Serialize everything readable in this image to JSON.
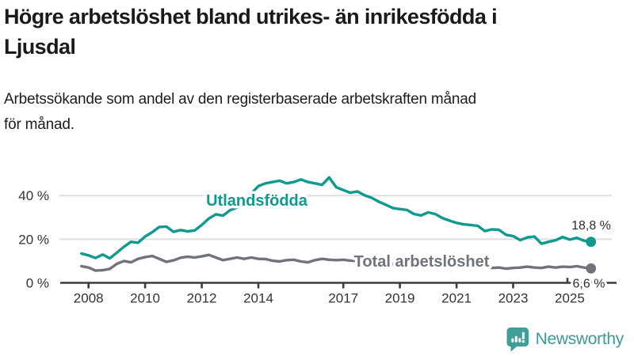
{
  "header": {
    "title": "Högre arbetslöshet bland utrikes- än inrikesfödda i\nLjusdal",
    "subtitle": "Arbetssökande som andel av den registerbaserade arbetskraften månad\nför månad."
  },
  "chart_data": {
    "type": "line",
    "title": "Högre arbetslöshet bland utrikes- än inrikesfödda i Ljusdal",
    "subtitle": "Arbetssökande som andel av den registerbaserade arbetskraften månad för månad.",
    "x_unit": "decimal year (monthly registry data, shown late 2007 – autumn 2025)",
    "ylabel": "",
    "xlabel": "",
    "grid": "horizontal-only",
    "legend_position": "inline-labels",
    "xlim": [
      2007.6,
      2026.3
    ],
    "ylim": [
      0,
      52
    ],
    "gridlines": [
      20,
      40
    ],
    "x": [
      2007.75,
      2008,
      2008.25,
      2008.5,
      2008.75,
      2009,
      2009.25,
      2009.5,
      2009.75,
      2010,
      2010.25,
      2010.5,
      2010.75,
      2011,
      2011.25,
      2011.5,
      2011.75,
      2012,
      2012.25,
      2012.5,
      2012.75,
      2013,
      2013.25,
      2013.5,
      2013.75,
      2014,
      2014.25,
      2014.5,
      2014.75,
      2015,
      2015.25,
      2015.5,
      2015.75,
      2016,
      2016.25,
      2016.5,
      2016.75,
      2017,
      2017.25,
      2017.5,
      2017.75,
      2018,
      2018.25,
      2018.5,
      2018.75,
      2019,
      2019.25,
      2019.5,
      2019.75,
      2020,
      2020.25,
      2020.5,
      2020.75,
      2021,
      2021.25,
      2021.5,
      2021.75,
      2022,
      2022.25,
      2022.5,
      2022.75,
      2023,
      2023.25,
      2023.5,
      2023.75,
      2024,
      2024.25,
      2024.5,
      2024.75,
      2025,
      2025.25,
      2025.5,
      2025.75
    ],
    "series": [
      {
        "name": "Utlandsfödda",
        "color": "#0e9a8e",
        "end_label": "18,8 %",
        "end_value": 18.8,
        "values": [
          13.4,
          12.6,
          11.4,
          13.0,
          11.2,
          13.8,
          16.5,
          18.8,
          18.4,
          21.2,
          23.2,
          25.6,
          25.8,
          23.4,
          24.2,
          23.6,
          24.0,
          26.5,
          29.5,
          31.4,
          30.8,
          33.3,
          34.5,
          37.0,
          41.0,
          44.3,
          45.6,
          46.2,
          46.8,
          45.6,
          46.2,
          47.4,
          46.2,
          45.6,
          44.9,
          48.3,
          43.8,
          42.5,
          41.3,
          41.9,
          40.1,
          39.0,
          37.2,
          35.8,
          34.3,
          33.8,
          33.4,
          31.5,
          30.9,
          32.3,
          31.5,
          29.7,
          28.5,
          27.5,
          26.8,
          26.5,
          26.1,
          23.7,
          24.5,
          24.3,
          22.0,
          21.4,
          19.6,
          20.8,
          21.2,
          17.9,
          18.8,
          19.5,
          21.0,
          19.8,
          20.6,
          19.3,
          18.8
        ]
      },
      {
        "name": "Total arbetslöshet",
        "color": "#72727a",
        "end_label": "6,6 %",
        "end_value": 6.6,
        "values": [
          7.6,
          7.0,
          5.6,
          5.8,
          6.4,
          8.7,
          10.0,
          9.4,
          11.0,
          11.8,
          12.3,
          11.0,
          9.6,
          10.3,
          11.5,
          12.0,
          11.6,
          12.1,
          12.8,
          11.6,
          10.4,
          11.0,
          11.6,
          11.0,
          11.6,
          11.0,
          10.9,
          10.1,
          9.8,
          10.4,
          10.6,
          9.8,
          9.4,
          10.4,
          11.0,
          10.6,
          10.4,
          10.6,
          10.2,
          10.0,
          9.6,
          9.2,
          9.0,
          8.8,
          8.6,
          8.5,
          8.4,
          8.3,
          8.4,
          8.6,
          9.4,
          9.6,
          9.2,
          8.8,
          8.5,
          8.1,
          7.7,
          7.3,
          6.8,
          7.0,
          6.5,
          6.8,
          7.0,
          7.4,
          7.0,
          6.8,
          7.4,
          7.0,
          7.4,
          7.2,
          7.6,
          7.0,
          6.6
        ]
      }
    ],
    "x_ticks": [
      {
        "year": 2008,
        "label": "2008",
        "tick": true
      },
      {
        "year": 2010,
        "label": "2010",
        "tick": true
      },
      {
        "year": 2012,
        "label": "2012",
        "tick": true
      },
      {
        "year": 2014,
        "label": "2014",
        "tick": true
      },
      {
        "year": 2017,
        "label": "2017",
        "tick": true
      },
      {
        "year": 2019,
        "label": "2019",
        "tick": true
      },
      {
        "year": 2021,
        "label": "2021",
        "tick": true
      },
      {
        "year": 2023,
        "label": "2023",
        "tick": true
      },
      {
        "year": 2025,
        "label": "2025",
        "tick": false
      }
    ],
    "y_ticks": [
      {
        "value": 0,
        "label": "0 %"
      },
      {
        "value": 20,
        "label": "20 %"
      },
      {
        "value": 40,
        "label": "40 %"
      }
    ]
  },
  "footer": {
    "brand": "Newsworthy",
    "brand_color": "#3f9894",
    "brand_icon": "newsworthy-bar-chart-bubble-icon"
  }
}
